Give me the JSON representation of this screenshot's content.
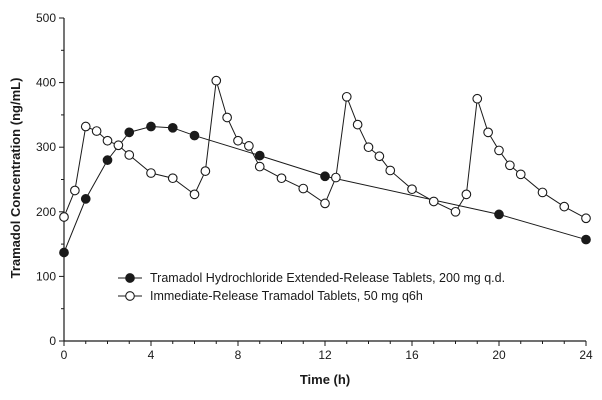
{
  "chart_data": {
    "type": "line",
    "title": "",
    "xlabel": "Time (h)",
    "ylabel": "Tramadol Concentration (ng/mL)",
    "xlim": [
      0,
      24
    ],
    "ylim": [
      0,
      500
    ],
    "xticks": [
      0,
      4,
      8,
      12,
      16,
      20,
      24
    ],
    "yticks": [
      0,
      100,
      200,
      300,
      400,
      500
    ],
    "grid": false,
    "legend_position": "lower-center",
    "series": [
      {
        "name": "Tramadol Hydrochloride Extended-Release Tablets, 200 mg q.d.",
        "marker": "filled-circle",
        "color": "#1a1a1a",
        "x": [
          0,
          1,
          2,
          3,
          4,
          5,
          6,
          9,
          12,
          20,
          24
        ],
        "y": [
          137,
          220,
          280,
          323,
          332,
          330,
          318,
          287,
          255,
          196,
          157
        ]
      },
      {
        "name": "Immediate-Release Tramadol Tablets, 50 mg q6h",
        "marker": "open-circle",
        "color": "#1a1a1a",
        "x": [
          0,
          0.5,
          1,
          1.5,
          2,
          2.5,
          3,
          4,
          5,
          6,
          6.5,
          7,
          7.5,
          8,
          8.5,
          9,
          10,
          11,
          12,
          12.5,
          13,
          13.5,
          14,
          14.5,
          15,
          16,
          17,
          18,
          18.5,
          19,
          19.5,
          20,
          20.5,
          21,
          22,
          23,
          24
        ],
        "y": [
          192,
          233,
          332,
          325,
          310,
          303,
          288,
          260,
          252,
          227,
          263,
          403,
          346,
          310,
          302,
          270,
          252,
          236,
          213,
          253,
          378,
          335,
          300,
          286,
          264,
          235,
          216,
          200,
          227,
          375,
          323,
          295,
          272,
          258,
          230,
          208,
          190
        ]
      }
    ]
  }
}
